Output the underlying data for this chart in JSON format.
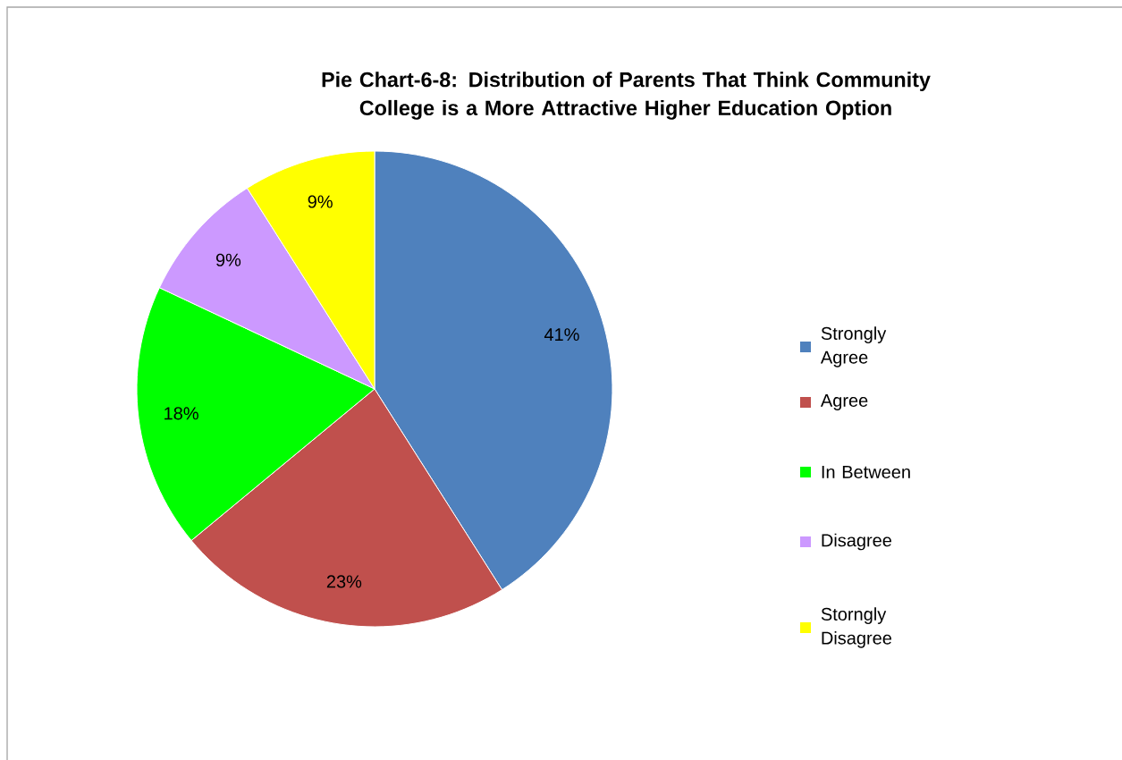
{
  "chart_data": {
    "type": "pie",
    "title": "Pie Chart-6-8: Distribution of Parents That Think Community College is a More Attractive Higher Education Option",
    "categories": [
      "Strongly Agree",
      "Agree",
      "In Between",
      "Disagree",
      "Storngly Disagree"
    ],
    "values": [
      41,
      23,
      18,
      9,
      9
    ],
    "value_labels": [
      "41%",
      "23%",
      "18%",
      "9%",
      "9%"
    ],
    "colors": [
      "#4f81bd",
      "#c0504d",
      "#00ff00",
      "#cc99ff",
      "#ffff00"
    ],
    "legend": "right"
  }
}
